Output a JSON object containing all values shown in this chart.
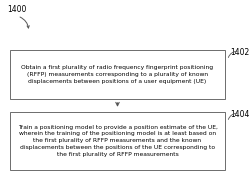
{
  "title_label": "1400",
  "box1_label": "1402",
  "box2_label": "1404",
  "box1_text": "Obtain a first plurality of radio frequency fingerprint positioning\n(RFFP) measurements corresponding to a plurality of known\ndisplacements between positions of a user equipment (UE)",
  "box2_text": "Train a positioning model to provide a position estimate of the UE,\nwherein the training of the positioning model is at least based on\nthe first plurality of RFFP measurements and the known\ndisplacements between the positions of the UE corresponding to\nthe first plurality of RFFP measurements",
  "bg_color": "#ffffff",
  "box_edge_color": "#555555",
  "text_color": "#000000",
  "arrow_color": "#555555",
  "font_size": 4.3,
  "label_font_size": 5.5,
  "fig_width": 2.5,
  "fig_height": 1.77,
  "dpi": 100
}
